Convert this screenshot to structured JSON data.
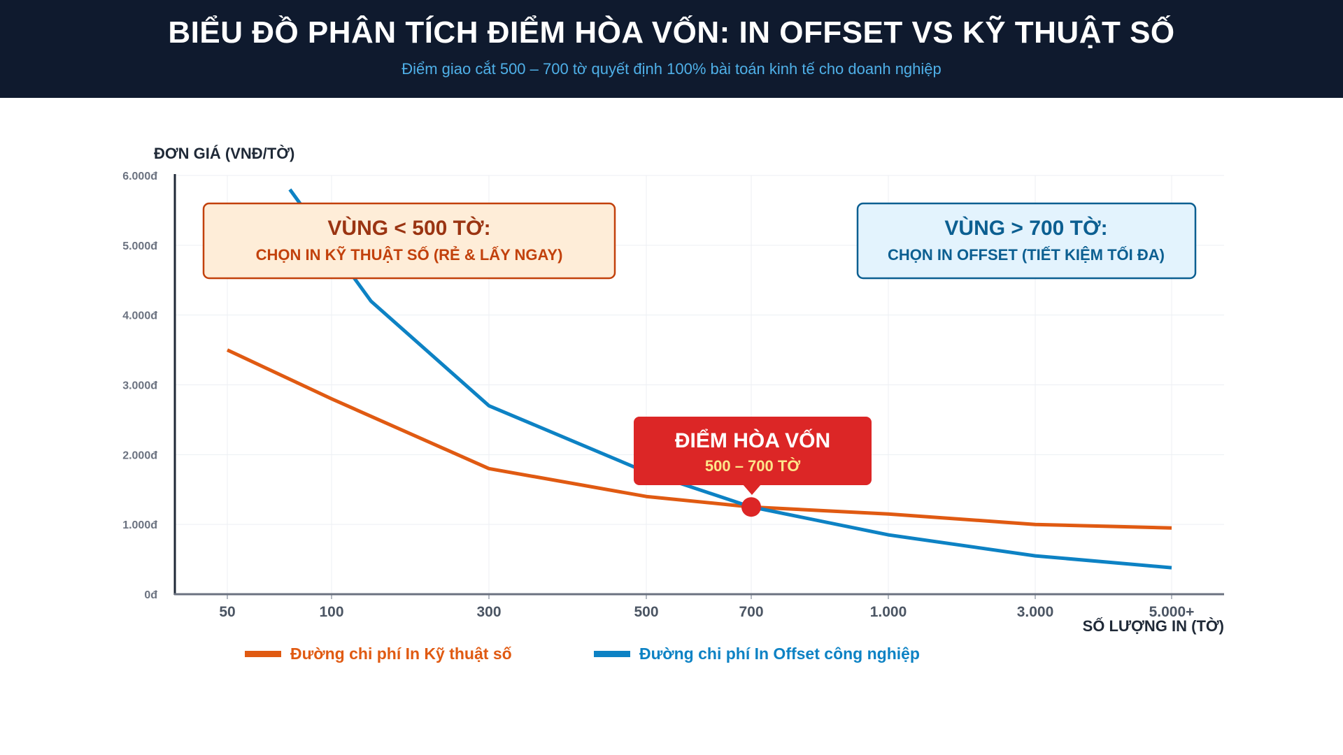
{
  "header": {
    "title": "BIỂU ĐỒ PHÂN TÍCH ĐIỂM HÒA VỐN: IN OFFSET VS KỸ THUẬT SỐ",
    "subtitle": "Điểm giao cắt 500 – 700 tờ quyết định 100% bài toán kinh tế cho doanh nghiệp"
  },
  "chart_data": {
    "type": "line",
    "ylabel": "ĐƠN GIÁ (VNĐ/TỜ)",
    "xlabel": "SỐ LƯỢNG IN (TỜ)",
    "ylim": [
      0,
      6000
    ],
    "grid": true,
    "legend_position": "bottom-left",
    "x_categories": [
      "50",
      "100",
      "300",
      "500",
      "700",
      "1.000",
      "3.000",
      "5.000+"
    ],
    "y_ticks": [
      "0đ",
      "1.000đ",
      "2.000đ",
      "3.000đ",
      "4.000đ",
      "5.000đ",
      "6.000đ"
    ],
    "series": [
      {
        "name": "Đường chi phí In Kỹ thuật số",
        "color": "#e05a12",
        "points": [
          {
            "x": 50,
            "y": 3500
          },
          {
            "x": 100,
            "y": 2800
          },
          {
            "x": 300,
            "y": 1800
          },
          {
            "x": 500,
            "y": 1400
          },
          {
            "x": 700,
            "y": 1250
          },
          {
            "x": 1000,
            "y": 1150
          },
          {
            "x": 3000,
            "y": 1000
          },
          {
            "x": 5000,
            "y": 950
          }
        ]
      },
      {
        "name": "Đường chi phí In Offset công nghiệp",
        "color": "#0d82c4",
        "points": [
          {
            "x": 80,
            "y": 5800
          },
          {
            "x": 150,
            "y": 4200
          },
          {
            "x": 300,
            "y": 2700
          },
          {
            "x": 500,
            "y": 1750
          },
          {
            "x": 700,
            "y": 1250
          },
          {
            "x": 1000,
            "y": 850
          },
          {
            "x": 3000,
            "y": 550
          },
          {
            "x": 5000,
            "y": 380
          }
        ]
      }
    ],
    "annotations": {
      "left_zone": {
        "title": "VÙNG < 500 TỜ:",
        "subtitle": "CHỌN IN KỸ THUẬT SỐ (RẺ & LẤY NGAY)",
        "color": "#c2410c",
        "fill": "#feedd8"
      },
      "right_zone": {
        "title": "VÙNG > 700 TỜ:",
        "subtitle": "CHỌN IN OFFSET (TIẾT KIỆM TỐI ĐA)",
        "color": "#0c5f91",
        "fill": "#e3f3fd"
      },
      "break_even": {
        "title": "ĐIỂM HÒA VỐN",
        "subtitle": "500 – 700 TỜ",
        "color": "#dc2626",
        "x": 700,
        "y": 1250
      }
    }
  }
}
